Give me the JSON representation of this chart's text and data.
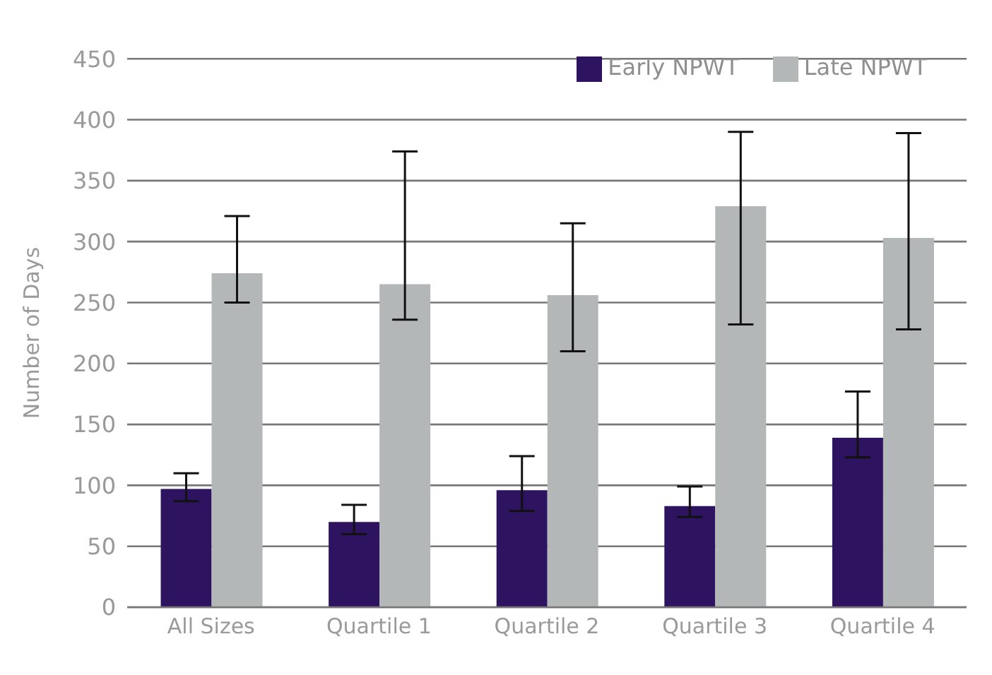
{
  "chart_data": {
    "type": "bar",
    "ylabel": "Number of Days",
    "categories": [
      "All Sizes",
      "Quartile 1",
      "Quartile 2",
      "Quartile 3",
      "Quartile 4"
    ],
    "series": [
      {
        "name": "Early NPWT",
        "color": "#2e1460",
        "values": [
          97,
          70,
          96,
          83,
          139
        ],
        "errors": [
          [
            87,
            110
          ],
          [
            60,
            84
          ],
          [
            79,
            124
          ],
          [
            74,
            99
          ],
          [
            123,
            177
          ]
        ]
      },
      {
        "name": "Late NPWT",
        "color": "#b4b7b8",
        "values": [
          274,
          265,
          256,
          329,
          303
        ],
        "errors": [
          [
            250,
            321
          ],
          [
            236,
            374
          ],
          [
            210,
            315
          ],
          [
            232,
            390
          ],
          [
            228,
            389
          ]
        ]
      }
    ],
    "ylim": [
      0,
      450
    ],
    "yticks": [
      0,
      50,
      100,
      150,
      200,
      250,
      300,
      350,
      400,
      450
    ],
    "grid": "y",
    "legend": "top right"
  }
}
